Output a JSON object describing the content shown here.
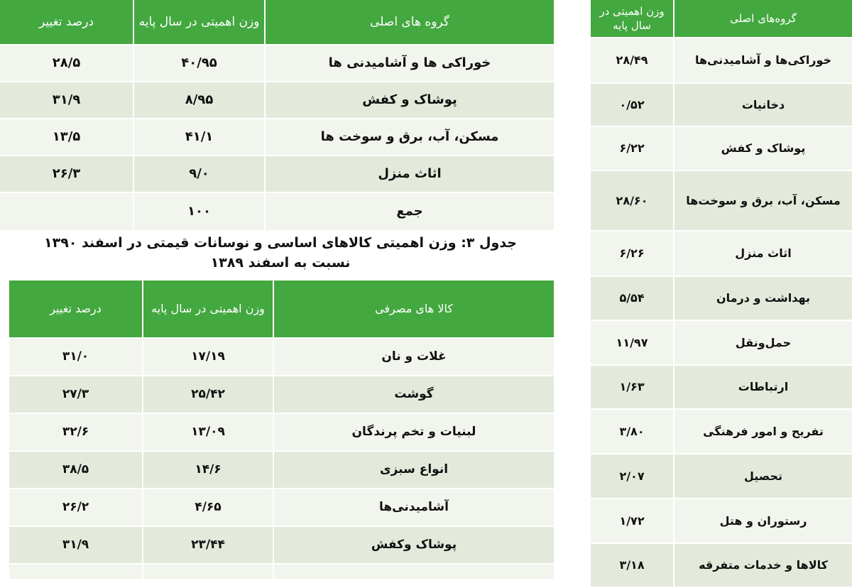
{
  "table_top_left": {
    "headers": [
      "گروه های اصلی",
      "وزن اهمیتی در سال پایه",
      "درصد تغییر"
    ],
    "rows": [
      [
        "خوراکی ها و آشامیدنی ها",
        "۴۰/۹۵",
        "۲۸/۵"
      ],
      [
        "پوشاک و کفش",
        "۸/۹۵",
        "۳۱/۹"
      ],
      [
        "مسکن، آب، برق و سوخت ها",
        "۴۱/۱",
        "۱۳/۵"
      ],
      [
        "اثاث منزل",
        "۹/۰",
        "۲۶/۳"
      ],
      [
        "جمع",
        "۱۰۰",
        ""
      ]
    ]
  },
  "caption": {
    "line1": "جدول ۳: وزن اهمیتی کالاهای اساسی و نوسانات قیمتی در اسفند ۱۳۹۰",
    "line2": "نسبت به اسفند ۱۳۸۹"
  },
  "table_bottom_left": {
    "headers": [
      "کالا های مصرفی",
      "وزن اهمیتی در سال پایه",
      "درصد تغییر"
    ],
    "rows": [
      [
        "غلات و نان",
        "۱۷/۱۹",
        "۳۱/۰"
      ],
      [
        "گوشت",
        "۲۵/۴۲",
        "۲۷/۳"
      ],
      [
        "لبنیات و تخم پرندگان",
        "۱۳/۰۹",
        "۳۲/۶"
      ],
      [
        "انواع سبزی",
        "۱۴/۶",
        "۳۸/۵"
      ],
      [
        "آشامیدنی‌ها",
        "۴/۶۵",
        "۲۶/۲"
      ],
      [
        "پوشاک وکفش",
        "۲۳/۴۴",
        "۳۱/۹"
      ],
      [
        "",
        "",
        ""
      ]
    ]
  },
  "table_right": {
    "headers": [
      "گروه‌های اصلی",
      "وزن اهمیتی در سال پایه"
    ],
    "rows": [
      [
        "خوراکی‌ها و آشامیدنی‌ها",
        "۲۸/۴۹"
      ],
      [
        "دخانیات",
        "۰/۵۲"
      ],
      [
        "پوشاک و کفش",
        "۶/۲۲"
      ],
      [
        "مسکن، آب، برق و سوخت‌ها",
        "۲۸/۶۰"
      ],
      [
        "اثاث منزل",
        "۶/۲۶"
      ],
      [
        "بهداشت و درمان",
        "۵/۵۴"
      ],
      [
        "حمل‌ونقل",
        "۱۱/۹۷"
      ],
      [
        "ارتباطات",
        "۱/۶۳"
      ],
      [
        "تفریح و امور فرهنگی",
        "۳/۸۰"
      ],
      [
        "تحصیل",
        "۲/۰۷"
      ],
      [
        "رستوران و هتل",
        "۱/۷۲"
      ],
      [
        "کالاها و خدمات متفرقه",
        "۳/۱۸"
      ]
    ]
  },
  "colors": {
    "header_green": "#43a83f",
    "row_light": "#f1f5ed",
    "row_dark": "#e3eadb"
  }
}
